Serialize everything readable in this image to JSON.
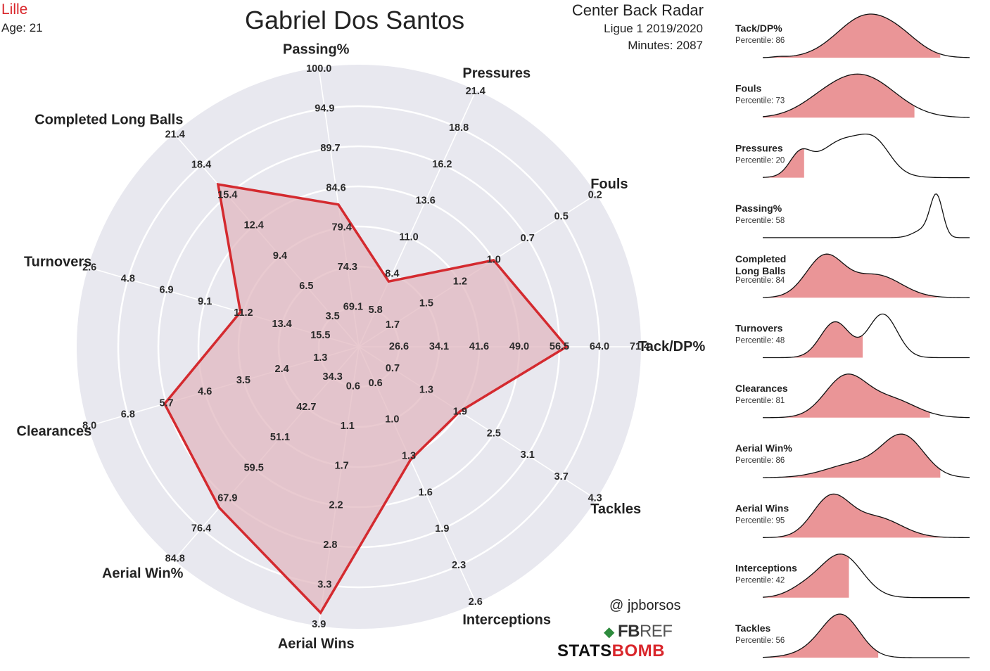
{
  "header": {
    "team": "Lille",
    "age": "Age: 21",
    "player": "Gabriel Dos Santos",
    "radar_title": "Center Back Radar",
    "league": "Ligue 1 2019/2020",
    "minutes": "Minutes: 2087"
  },
  "credits": {
    "author": "@ jpborsos",
    "fbref_fb": "FB",
    "fbref_ref": "REF",
    "statsbomb_stats": "STATS",
    "statsbomb_bomb": "BOMB"
  },
  "colors": {
    "radar_bg": "#e8e8ef",
    "ring": "#ffffff",
    "polygon_fill": "#e2b8c0",
    "polygon_stroke": "#d42a2f",
    "team": "#d9262b",
    "kde_fill": "#e88a8c"
  },
  "chart_data": [
    {
      "type": "radar",
      "axes": [
        {
          "label": "Tack/DP%",
          "ticks": [
            "26.6",
            "34.1",
            "41.6",
            "49.0",
            "56.5",
            "64.0",
            "71.4"
          ],
          "value": 59.0,
          "range": [
            19.1,
            71.4
          ]
        },
        {
          "label": "Fouls",
          "ticks": [
            "1.7",
            "1.5",
            "1.2",
            "1.0",
            "0.7",
            "0.5",
            "0.2"
          ],
          "value": 0.9,
          "range": [
            1.9,
            0.2
          ]
        },
        {
          "label": "Pressures",
          "ticks": [
            "5.8",
            "8.4",
            "11.0",
            "13.6",
            "16.2",
            "18.8",
            "21.4"
          ],
          "value": 8.0,
          "range": [
            3.2,
            21.4
          ]
        },
        {
          "label": "Passing%",
          "ticks": [
            "69.1",
            "74.3",
            "79.4",
            "84.6",
            "89.7",
            "94.9",
            "100.0"
          ],
          "value": 83.0,
          "range": [
            64.0,
            100.0
          ]
        },
        {
          "label": "Completed Long Balls",
          "ticks": [
            "3.5",
            "6.5",
            "9.4",
            "12.4",
            "15.4",
            "18.4",
            "21.4"
          ],
          "value": 17.0,
          "range": [
            0.5,
            21.4
          ]
        },
        {
          "label": "Turnovers",
          "ticks": [
            "15.5",
            "13.4",
            "11.2",
            "9.1",
            "6.9",
            "4.8",
            "2.6"
          ],
          "value": 10.8,
          "range": [
            17.6,
            2.6
          ]
        },
        {
          "label": "Clearances",
          "ticks": [
            "1.3",
            "2.4",
            "3.5",
            "4.6",
            "5.7",
            "6.8",
            "8.0"
          ],
          "value": 6.0,
          "range": [
            0.2,
            8.0
          ]
        },
        {
          "label": "Aerial Win%",
          "ticks": [
            "34.3",
            "42.7",
            "51.1",
            "59.5",
            "67.9",
            "76.4",
            "84.8"
          ],
          "value": 72.0,
          "range": [
            25.9,
            84.8
          ]
        },
        {
          "label": "Aerial Wins",
          "ticks": [
            "0.6",
            "1.1",
            "1.7",
            "2.2",
            "2.8",
            "3.3",
            "3.9"
          ],
          "value": 3.85,
          "range": [
            0.0,
            3.9
          ]
        },
        {
          "label": "Interceptions",
          "ticks": [
            "0.6",
            "1.0",
            "1.3",
            "1.6",
            "1.9",
            "2.3",
            "2.6"
          ],
          "value": 1.35,
          "range": [
            0.3,
            2.6
          ]
        },
        {
          "label": "Tackles",
          "ticks": [
            "0.7",
            "1.3",
            "1.9",
            "2.5",
            "3.1",
            "3.7",
            "4.3"
          ],
          "value": 1.95,
          "range": [
            0.1,
            4.3
          ]
        }
      ]
    },
    {
      "type": "area",
      "panels": [
        {
          "label": "Tack/DP%",
          "percentile_text": "Percentile: 86",
          "percentile": 86
        },
        {
          "label": "Fouls",
          "percentile_text": "Percentile: 73",
          "percentile": 73
        },
        {
          "label": "Pressures",
          "percentile_text": "Percentile: 20",
          "percentile": 20
        },
        {
          "label": "Passing%",
          "percentile_text": "Percentile: 58",
          "percentile": 58
        },
        {
          "label": "Completed\nLong Balls",
          "percentile_text": "Percentile: 84",
          "percentile": 84
        },
        {
          "label": "Turnovers",
          "percentile_text": "Percentile: 48",
          "percentile": 48
        },
        {
          "label": "Clearances",
          "percentile_text": "Percentile: 81",
          "percentile": 81
        },
        {
          "label": "Aerial Win%",
          "percentile_text": "Percentile: 86",
          "percentile": 86
        },
        {
          "label": "Aerial Wins",
          "percentile_text": "Percentile: 95",
          "percentile": 95
        },
        {
          "label": "Interceptions",
          "percentile_text": "Percentile: 42",
          "percentile": 42
        },
        {
          "label": "Tackles",
          "percentile_text": "Percentile: 56",
          "percentile": 56
        }
      ]
    }
  ]
}
